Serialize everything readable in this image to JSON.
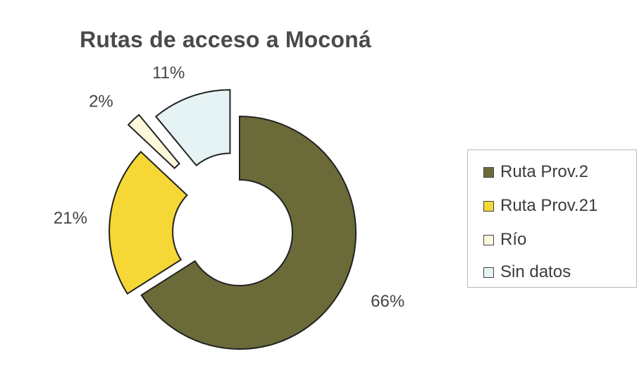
{
  "chart_data": {
    "type": "pie",
    "subtype": "exploded-doughnut",
    "title": "Rutas de acceso a Moconá",
    "legend_position": "right",
    "slices": [
      {
        "name": "Ruta Prov.2",
        "value": 66,
        "label": "66%",
        "color": "#6b6b3a"
      },
      {
        "name": "Ruta Prov.21",
        "value": 21,
        "label": "21%",
        "color": "#f5d835"
      },
      {
        "name": "Río",
        "value": 2,
        "label": "2%",
        "color": "#fbf8dc"
      },
      {
        "name": "Sin datos",
        "value": 11,
        "label": "11%",
        "color": "#e6f3f5"
      }
    ]
  }
}
